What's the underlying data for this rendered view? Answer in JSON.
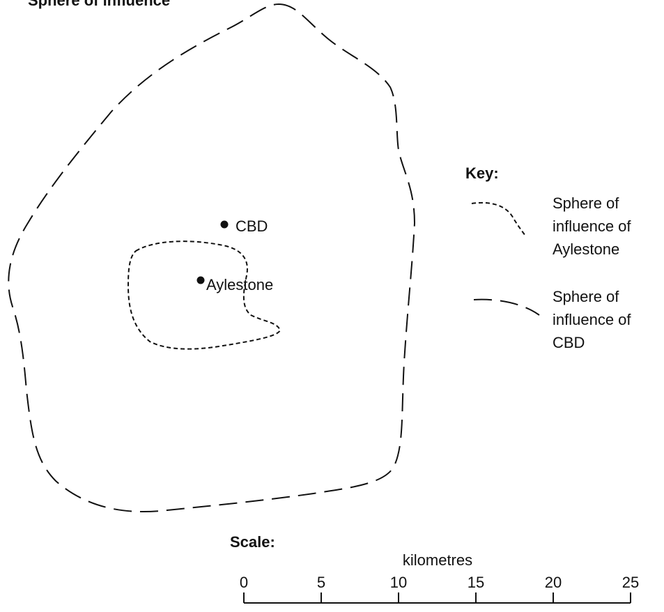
{
  "title": "Sphere of influence",
  "places": [
    {
      "label": "CBD"
    },
    {
      "label": "Aylestone"
    }
  ],
  "key": {
    "title": "Key:",
    "items": [
      {
        "lines": [
          "Sphere of",
          "influence of",
          "Aylestone"
        ]
      },
      {
        "lines": [
          "Sphere of",
          "influence of",
          "CBD"
        ]
      }
    ]
  },
  "scale": {
    "title": "Scale:",
    "unit": "kilometres",
    "ticks": [
      0,
      5,
      10,
      15,
      20,
      25
    ]
  }
}
